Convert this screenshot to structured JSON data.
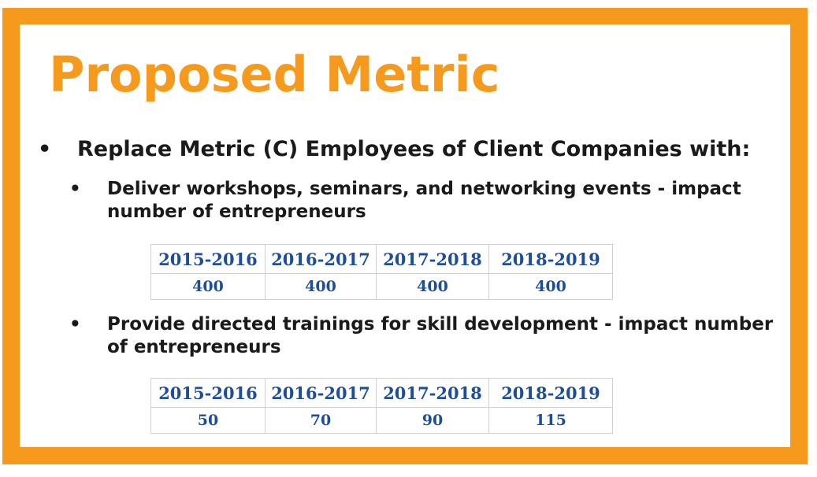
{
  "title": "Proposed Metric",
  "main_bullet": "Replace Metric (C) Employees of Client Companies with:",
  "bullet_symbol": "•",
  "items": [
    {
      "text": "Deliver workshops, seminars, and networking events - impact number of entrepreneurs",
      "table": {
        "headers": [
          "2015-2016",
          "2016-2017",
          "2017-2018",
          "2018-2019"
        ],
        "values": [
          "400",
          "400",
          "400",
          "400"
        ]
      }
    },
    {
      "text": "Provide directed trainings for skill development  - impact number of entrepreneurs",
      "table": {
        "headers": [
          "2015-2016",
          "2016-2017",
          "2017-2018",
          "2018-2019"
        ],
        "values": [
          "50",
          "70",
          "90",
          "115"
        ]
      }
    }
  ],
  "colors": {
    "accent": "#f59a1c",
    "table_text": "#1f4e99",
    "body_text": "#1a1a1a"
  }
}
